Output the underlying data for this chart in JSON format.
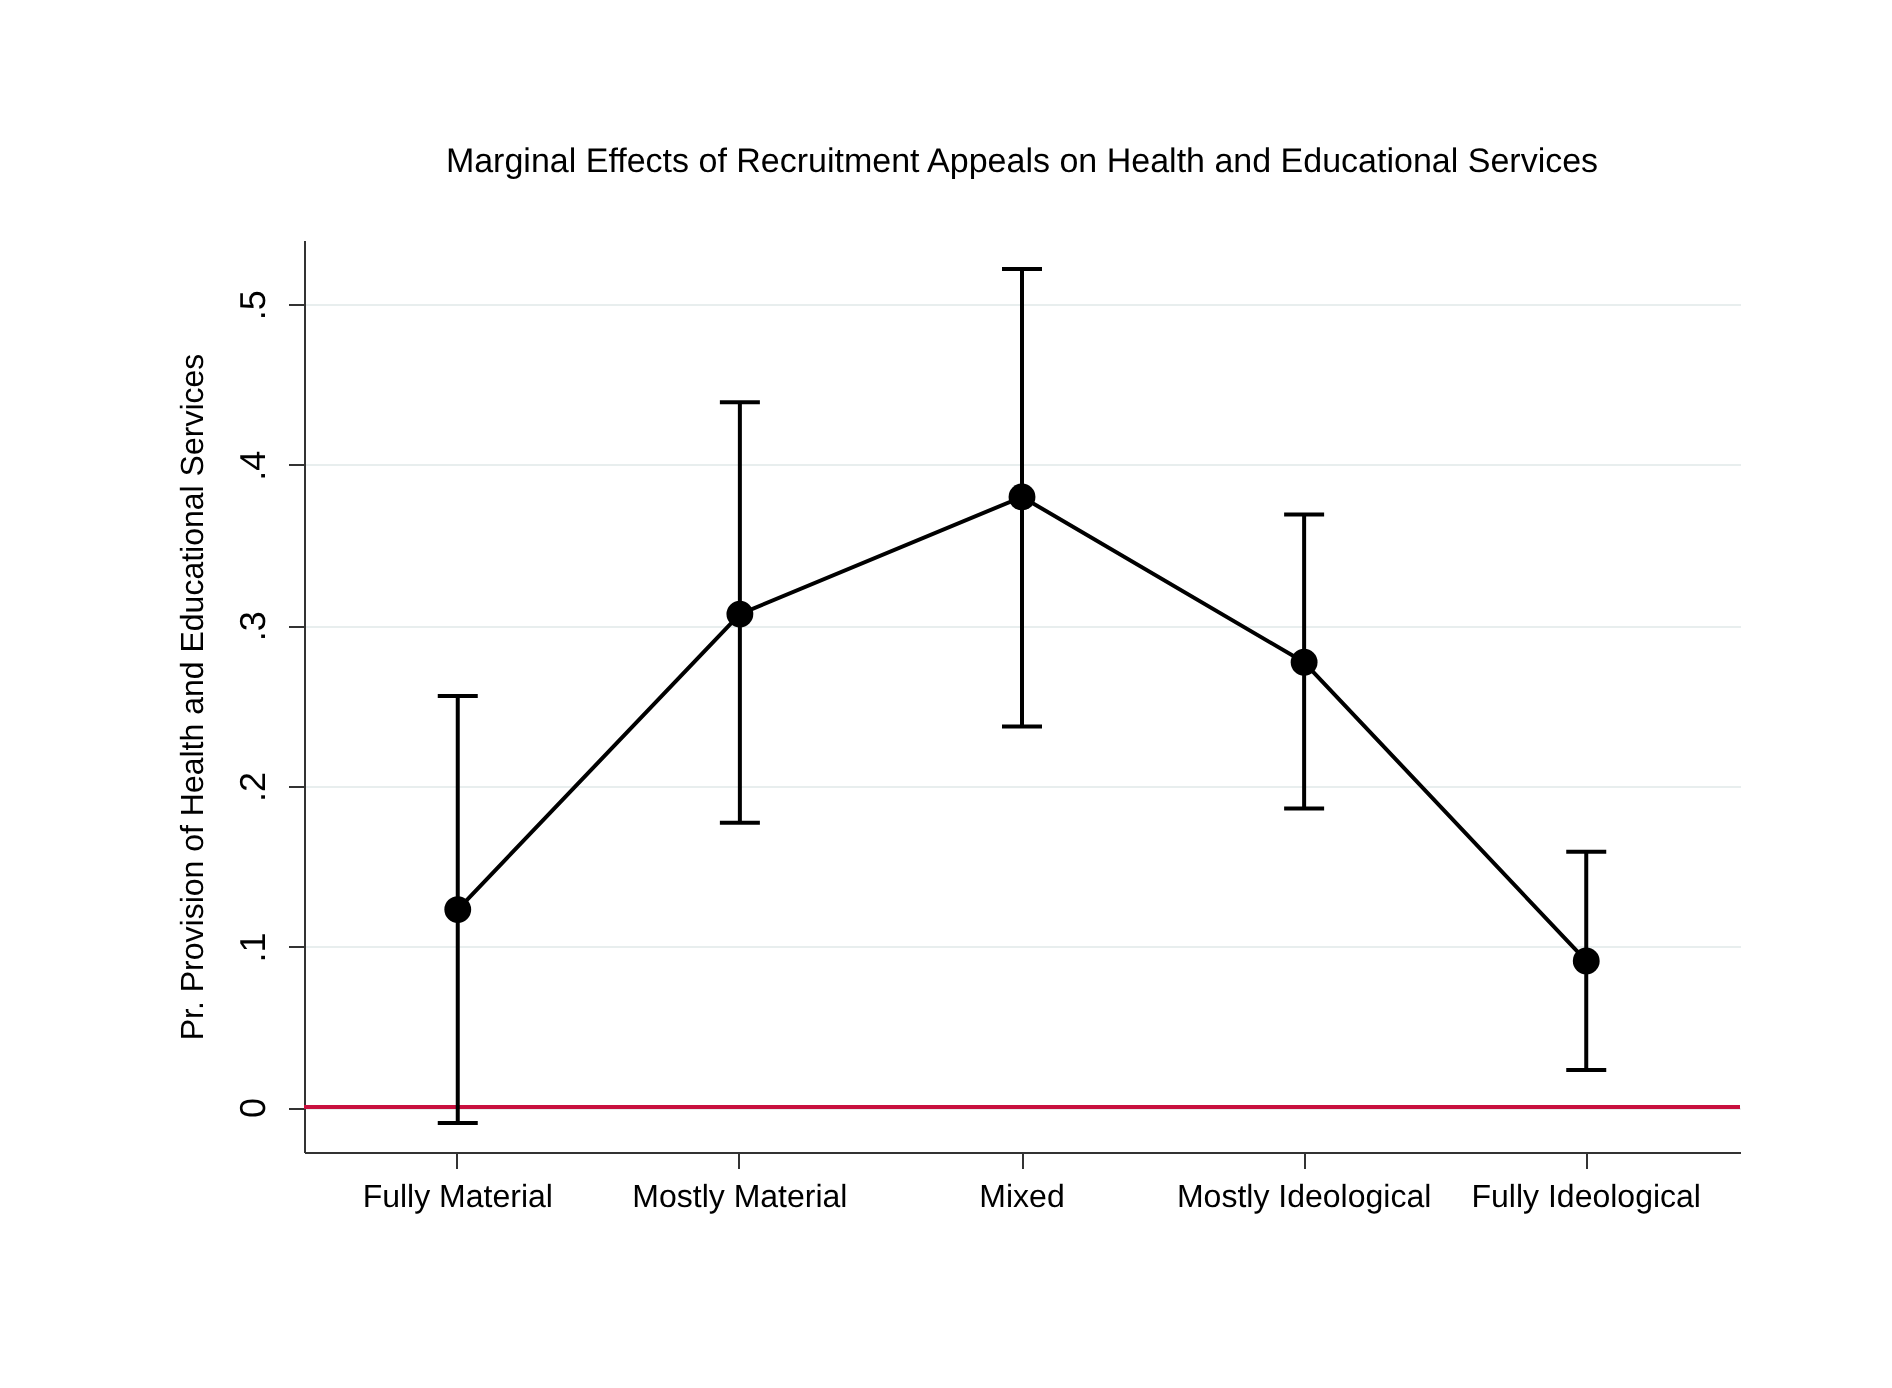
{
  "chart_data": {
    "type": "line",
    "title": "Marginal Effects of Recruitment Appeals on Health and Educational Services",
    "ylabel": "Pr. Provision of Health and Educational Services",
    "categories": [
      "Fully Material",
      "Mostly Material",
      "Mixed",
      "Mostly Ideological",
      "Fully Ideological"
    ],
    "series": [
      {
        "color": "#000000",
        "values": [
          0.123,
          0.307,
          0.38,
          0.277,
          0.091
        ],
        "errors": [
          [
            -0.01,
            0.256
          ],
          [
            0.177,
            0.439
          ],
          [
            0.237,
            0.522
          ],
          [
            0.186,
            0.369
          ],
          [
            0.023,
            0.159
          ]
        ]
      }
    ],
    "ylim": [
      -0.028,
      0.54
    ],
    "yticks": [
      0,
      {
        "value": 0.1,
        "label": ".1"
      },
      {
        "value": 0.2,
        "label": ".2"
      },
      {
        "value": 0.3,
        "label": ".3"
      },
      {
        "value": 0.4,
        "label": ".4"
      },
      {
        "value": 0.5,
        "label": ".5"
      }
    ],
    "ref_lines": [
      {
        "axis": "y",
        "value": 0,
        "color": "#c8103e"
      }
    ],
    "grid": "y",
    "marker": "circle"
  }
}
